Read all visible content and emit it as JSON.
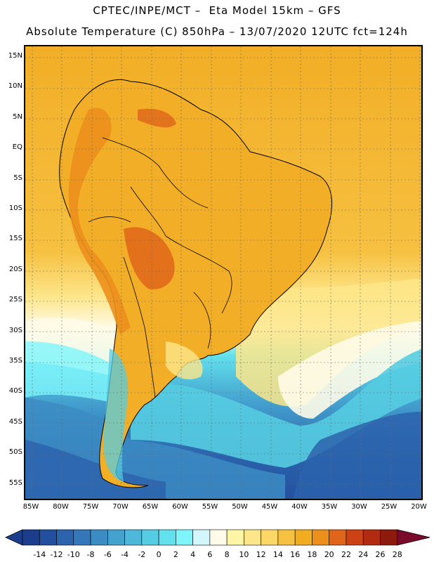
{
  "header": {
    "line1": "CPTEC/INPE/MCT –  Eta Model 15km – GFS",
    "line2": "Absolute Temperature (C) 850hPa – 13/07/2020 12UTC fct=124h"
  },
  "map": {
    "region": "South America",
    "lat_labels": [
      "15N",
      "10N",
      "5N",
      "EQ",
      "5S",
      "10S",
      "15S",
      "20S",
      "25S",
      "30S",
      "35S",
      "40S",
      "45S",
      "50S",
      "55S"
    ],
    "lon_labels": [
      "85W",
      "80W",
      "75W",
      "70W",
      "65W",
      "60W",
      "55W",
      "50W",
      "45W",
      "40W",
      "35W",
      "30W",
      "25W",
      "20W"
    ]
  },
  "colorbar": {
    "labels": [
      "-14",
      "-12",
      "-10",
      "-8",
      "-6",
      "-4",
      "-2",
      "0",
      "2",
      "4",
      "6",
      "8",
      "10",
      "12",
      "14",
      "16",
      "18",
      "20",
      "22",
      "24",
      "26",
      "28"
    ],
    "colors": [
      "#1c3d8c",
      "#23509e",
      "#2b63ad",
      "#3478ba",
      "#3c8cc4",
      "#44a2cf",
      "#4db8d9",
      "#55cce1",
      "#62e0ec",
      "#7ef5fb",
      "#d2f6fb",
      "#fffbe8",
      "#fff5a6",
      "#fde68a",
      "#fbd766",
      "#f6c040",
      "#f2ac20",
      "#ec8f1c",
      "#e0651a",
      "#cc4214",
      "#b02b10",
      "#8c1a0d",
      "#7a0b2a"
    ]
  }
}
